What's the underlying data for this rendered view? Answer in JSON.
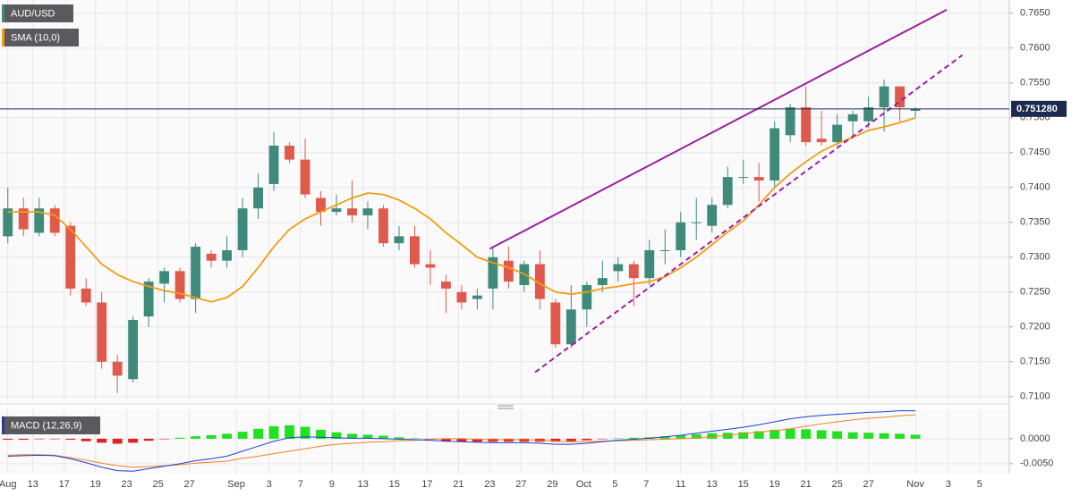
{
  "chart_data": [
    {
      "type": "candlestick",
      "series": [
        {
          "name": "AUD/USD",
          "up_color": "#3f8a7b",
          "down_color": "#e0594d",
          "legend_color": "#3f8a7b",
          "open": [
            0.733,
            0.737,
            0.7335,
            0.737,
            0.7345,
            0.7255,
            0.7235,
            0.715,
            0.7125,
            0.7215,
            0.7262,
            0.728,
            0.724,
            0.7305,
            0.7295,
            0.731,
            0.737,
            0.7405,
            0.746,
            0.744,
            0.7385,
            0.7365,
            0.737,
            0.736,
            0.737,
            0.732,
            0.733,
            0.729,
            0.7265,
            0.725,
            0.724,
            0.7255,
            0.7295,
            0.726,
            0.729,
            0.7235,
            0.7175,
            0.7225,
            0.726,
            0.728,
            0.729,
            0.727,
            0.731,
            0.731,
            0.735,
            0.7345,
            0.7375,
            0.7415,
            0.7415,
            0.741,
            0.7475,
            0.7515,
            0.747,
            0.7465,
            0.7495,
            0.7495,
            0.7515,
            0.7545,
            0.751
          ],
          "high": [
            0.74,
            0.7385,
            0.7385,
            0.7375,
            0.735,
            0.727,
            0.725,
            0.716,
            0.7215,
            0.727,
            0.7285,
            0.7285,
            0.732,
            0.731,
            0.733,
            0.7385,
            0.742,
            0.748,
            0.7465,
            0.747,
            0.7395,
            0.739,
            0.741,
            0.738,
            0.7375,
            0.7345,
            0.7345,
            0.731,
            0.7275,
            0.726,
            0.7255,
            0.7315,
            0.7315,
            0.7295,
            0.731,
            0.724,
            0.726,
            0.7265,
            0.7295,
            0.73,
            0.7295,
            0.7325,
            0.734,
            0.7365,
            0.7385,
            0.7385,
            0.743,
            0.744,
            0.7435,
            0.7495,
            0.752,
            0.7545,
            0.751,
            0.7505,
            0.751,
            0.753,
            0.7555,
            0.7545,
            0.7515
          ],
          "low": [
            0.732,
            0.733,
            0.733,
            0.733,
            0.7245,
            0.723,
            0.714,
            0.7105,
            0.712,
            0.72,
            0.7235,
            0.7235,
            0.722,
            0.7285,
            0.7285,
            0.73,
            0.7355,
            0.7395,
            0.7435,
            0.7385,
            0.7345,
            0.736,
            0.735,
            0.734,
            0.7315,
            0.731,
            0.7285,
            0.726,
            0.722,
            0.7225,
            0.7225,
            0.7225,
            0.7255,
            0.725,
            0.7225,
            0.717,
            0.717,
            0.72,
            0.725,
            0.7265,
            0.723,
            0.726,
            0.729,
            0.73,
            0.7325,
            0.7335,
            0.737,
            0.7405,
            0.738,
            0.74,
            0.7465,
            0.746,
            0.746,
            0.746,
            0.747,
            0.7485,
            0.748,
            0.7495,
            0.75
          ],
          "close": [
            0.737,
            0.734,
            0.737,
            0.7335,
            0.7255,
            0.7235,
            0.715,
            0.713,
            0.721,
            0.7265,
            0.728,
            0.724,
            0.7315,
            0.7295,
            0.731,
            0.737,
            0.74,
            0.746,
            0.744,
            0.739,
            0.7365,
            0.737,
            0.736,
            0.737,
            0.732,
            0.733,
            0.729,
            0.7285,
            0.7255,
            0.7235,
            0.7245,
            0.73,
            0.7265,
            0.729,
            0.724,
            0.7175,
            0.7225,
            0.726,
            0.727,
            0.729,
            0.727,
            0.731,
            0.731,
            0.735,
            0.735,
            0.7375,
            0.7415,
            0.7415,
            0.741,
            0.7485,
            0.7515,
            0.7465,
            0.7465,
            0.749,
            0.7505,
            0.7515,
            0.7545,
            0.7515,
            0.7513
          ]
        },
        {
          "name": "SMA (10,0)",
          "color": "#f39c12",
          "values": [
            0.7365,
            0.7365,
            0.7365,
            0.736,
            0.734,
            0.7315,
            0.729,
            0.7275,
            0.7265,
            0.7258,
            0.7252,
            0.7248,
            0.7242,
            0.7236,
            0.7242,
            0.7258,
            0.7285,
            0.7315,
            0.734,
            0.7355,
            0.7365,
            0.7375,
            0.7385,
            0.7392,
            0.739,
            0.7382,
            0.737,
            0.7355,
            0.7335,
            0.7318,
            0.73,
            0.7292,
            0.7285,
            0.7276,
            0.7262,
            0.725,
            0.7247,
            0.725,
            0.7255,
            0.7258,
            0.7262,
            0.7265,
            0.7272,
            0.7285,
            0.73,
            0.7318,
            0.7336,
            0.7352,
            0.7375,
            0.74,
            0.742,
            0.7437,
            0.7452,
            0.7463,
            0.7472,
            0.7482,
            0.7487,
            0.7493,
            0.75
          ]
        }
      ],
      "trendlines": [
        {
          "x": [
            30.8,
            60.0
          ],
          "y": [
            0.7312,
            0.7655
          ],
          "color": "#9c1fa3",
          "dashed": false
        },
        {
          "x": [
            33.7,
            61.0
          ],
          "y": [
            0.7135,
            0.759
          ],
          "color": "#9c1fa3",
          "dashed": true
        }
      ],
      "last_price": {
        "value": 0.75128,
        "label": "0.751280"
      },
      "xlim": [
        -0.5,
        64
      ],
      "ylim": [
        0.7092,
        0.7669
      ],
      "yticks": [
        {
          "value": 0.71,
          "label": "0.7100"
        },
        {
          "value": 0.715,
          "label": "0.7150"
        },
        {
          "value": 0.72,
          "label": "0.7200"
        },
        {
          "value": 0.725,
          "label": "0.7250"
        },
        {
          "value": 0.73,
          "label": "0.7300"
        },
        {
          "value": 0.735,
          "label": "0.7350"
        },
        {
          "value": 0.74,
          "label": "0.7400"
        },
        {
          "value": 0.745,
          "label": "0.7450"
        },
        {
          "value": 0.75,
          "label": "0.7500"
        },
        {
          "value": 0.755,
          "label": "0.7550"
        },
        {
          "value": 0.76,
          "label": "0.7600"
        },
        {
          "value": 0.765,
          "label": "0.7650"
        }
      ],
      "grid": true
    },
    {
      "type": "macd",
      "name": "MACD (12,26,9)",
      "legend_color": "#2b3a8f",
      "histogram": {
        "positive_color": "#22e022",
        "negative_color": "#e01f1f",
        "values": [
          -0.0002,
          -0.0002,
          -0.0001,
          -0.0001,
          -0.0002,
          -0.0005,
          -0.0008,
          -0.001,
          -0.0008,
          -0.0004,
          -0.0001,
          0.0002,
          0.0005,
          0.0007,
          0.001,
          0.0014,
          0.002,
          0.0025,
          0.0027,
          0.0024,
          0.0018,
          0.0013,
          0.001,
          0.0008,
          0.0006,
          0.0003,
          0.0001,
          -0.0002,
          -0.0005,
          -0.0006,
          -0.0006,
          -0.0006,
          -0.0006,
          -0.0006,
          -0.0006,
          -0.0006,
          -0.0005,
          -0.0003,
          -0.0001,
          0.0001,
          0.0002,
          0.0003,
          0.0005,
          0.0007,
          0.0009,
          0.0011,
          0.0012,
          0.0013,
          0.0015,
          0.0018,
          0.002,
          0.0019,
          0.0017,
          0.0015,
          0.0013,
          0.0012,
          0.0011,
          0.001,
          0.0008
        ]
      },
      "macd": {
        "color": "#1f3fd6",
        "values": [
          -0.0035,
          -0.0034,
          -0.0033,
          -0.0034,
          -0.004,
          -0.0048,
          -0.0057,
          -0.0064,
          -0.0065,
          -0.006,
          -0.0055,
          -0.005,
          -0.0044,
          -0.004,
          -0.0035,
          -0.0025,
          -0.0015,
          -0.0005,
          0.0002,
          0.0004,
          0.0003,
          0.0002,
          0.0001,
          0.0001,
          0.0,
          -0.0001,
          -0.0002,
          -0.0003,
          -0.0005,
          -0.0006,
          -0.0007,
          -0.0008,
          -0.0008,
          -0.0008,
          -0.0009,
          -0.0011,
          -0.0011,
          -0.0009,
          -0.0006,
          -0.0003,
          -0.0001,
          0.0001,
          0.0004,
          0.0007,
          0.0011,
          0.0015,
          0.0019,
          0.0023,
          0.0028,
          0.0034,
          0.004,
          0.0044,
          0.0047,
          0.0049,
          0.0051,
          0.0053,
          0.0054,
          0.0056,
          0.0056
        ]
      },
      "signal": {
        "color": "#f0821e",
        "values": [
          -0.0033,
          -0.0032,
          -0.0032,
          -0.0033,
          -0.0038,
          -0.0043,
          -0.0049,
          -0.0054,
          -0.0057,
          -0.0056,
          -0.0054,
          -0.0052,
          -0.0049,
          -0.0047,
          -0.0045,
          -0.0039,
          -0.0035,
          -0.003,
          -0.0025,
          -0.002,
          -0.0015,
          -0.0011,
          -0.0009,
          -0.0007,
          -0.0006,
          -0.0004,
          -0.0003,
          -0.0001,
          0.0,
          0.0,
          -0.0001,
          -0.0002,
          -0.0002,
          -0.0002,
          -0.0003,
          -0.0005,
          -0.0006,
          -0.0006,
          -0.0005,
          -0.0004,
          -0.0003,
          -0.0002,
          -0.0001,
          0.0,
          0.0002,
          0.0004,
          0.0007,
          0.001,
          0.0013,
          0.0016,
          0.002,
          0.0025,
          0.003,
          0.0034,
          0.0038,
          0.0041,
          0.0043,
          0.0046,
          0.0048
        ]
      },
      "xlim": [
        -0.5,
        64
      ],
      "ylim": [
        -0.007,
        0.0059
      ],
      "yticks": [
        {
          "value": 0,
          "label": "0.0000"
        },
        {
          "value": -0.005,
          "label": "-0.0050"
        }
      ],
      "xticks": [
        {
          "value": 0.0,
          "label": "Aug"
        },
        {
          "value": 1.6,
          "label": "13"
        },
        {
          "value": 3.6,
          "label": "17"
        },
        {
          "value": 5.6,
          "label": "19"
        },
        {
          "value": 7.6,
          "label": "23"
        },
        {
          "value": 9.6,
          "label": "25"
        },
        {
          "value": 11.6,
          "label": "27"
        },
        {
          "value": 14.6,
          "label": "Sep"
        },
        {
          "value": 16.7,
          "label": "3"
        },
        {
          "value": 18.7,
          "label": "7"
        },
        {
          "value": 20.7,
          "label": "9"
        },
        {
          "value": 22.7,
          "label": "13"
        },
        {
          "value": 24.7,
          "label": "15"
        },
        {
          "value": 26.8,
          "label": "17"
        },
        {
          "value": 28.8,
          "label": "21"
        },
        {
          "value": 30.8,
          "label": "23"
        },
        {
          "value": 32.8,
          "label": "27"
        },
        {
          "value": 34.8,
          "label": "29"
        },
        {
          "value": 36.8,
          "label": "Oct"
        },
        {
          "value": 38.8,
          "label": "5"
        },
        {
          "value": 40.8,
          "label": "7"
        },
        {
          "value": 43.0,
          "label": "11"
        },
        {
          "value": 45.0,
          "label": "13"
        },
        {
          "value": 47.0,
          "label": "15"
        },
        {
          "value": 49.0,
          "label": "19"
        },
        {
          "value": 51.0,
          "label": "21"
        },
        {
          "value": 53.0,
          "label": "25"
        },
        {
          "value": 55.0,
          "label": "27"
        },
        {
          "value": 58.0,
          "label": "Nov"
        },
        {
          "value": 60.1,
          "label": "3"
        },
        {
          "value": 62.1,
          "label": "5"
        }
      ],
      "grid": true
    }
  ]
}
